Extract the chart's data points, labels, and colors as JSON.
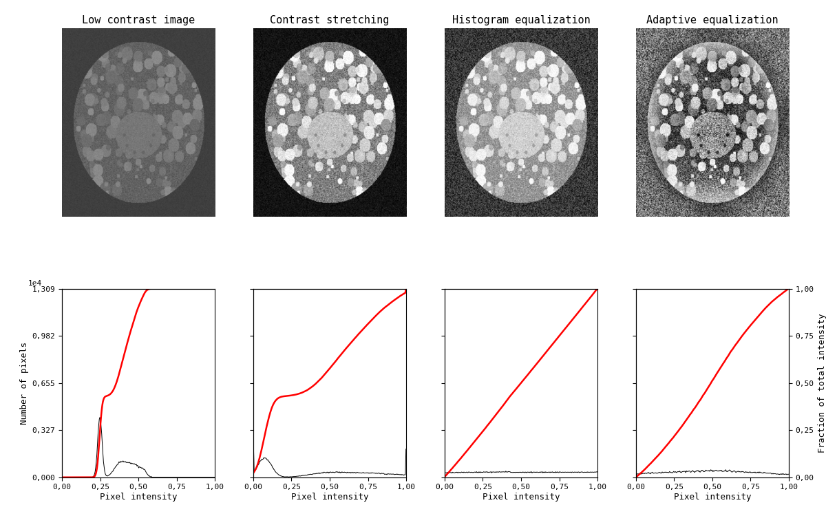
{
  "titles": [
    "Low contrast image",
    "Contrast stretching",
    "Histogram equalization",
    "Adaptive equalization"
  ],
  "col_titles_fontsize": 11,
  "col_titles_fontfamily": "monospace",
  "xlabel": "Pixel intensity",
  "ylabel_left": "Number of pixels",
  "ylabel_right": "Fraction of total intensity",
  "ytick_labels": [
    "0,000",
    "0,327",
    "0,655",
    "0,982",
    "1,309"
  ],
  "ytick_vals": [
    0,
    3270,
    6550,
    9820,
    13090
  ],
  "ytick_right_labels": [
    "0,00",
    "0,25",
    "0,50",
    "0,75",
    "1,00"
  ],
  "ytick_right_vals": [
    0.0,
    0.25,
    0.5,
    0.75,
    1.0
  ],
  "xtick_labels": [
    "0,00",
    "0,25",
    "0,50",
    "0,75",
    "1,00"
  ],
  "xtick_vals": [
    0.0,
    0.25,
    0.5,
    0.75,
    1.0
  ],
  "scale_label": "1e4",
  "hist_color": "black",
  "cdf_color": "red",
  "background_color": "#ffffff",
  "fig_background": "#ffffff",
  "nbins": 256,
  "max_count": 13090,
  "hist_linewidth": 0.7,
  "cdf_linewidth": 1.8
}
